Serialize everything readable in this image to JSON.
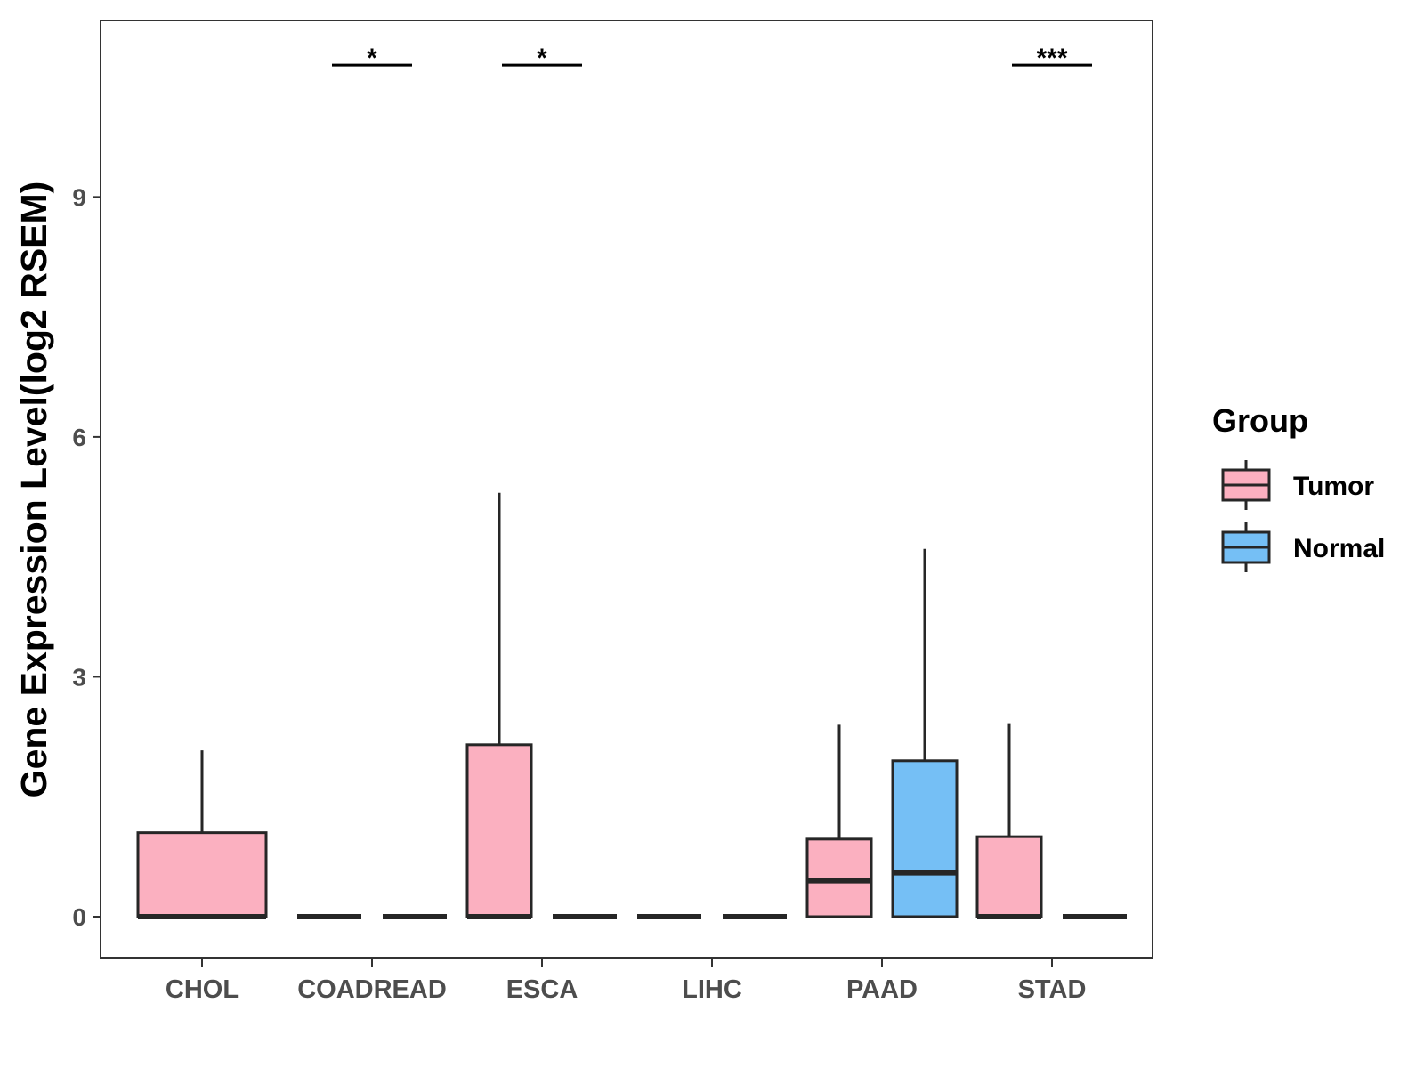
{
  "chart_data": {
    "type": "box",
    "title": "",
    "xlabel": "",
    "ylabel": "Gene Expression Level(log2 RSEM)",
    "ylim": [
      -0.55,
      11.2
    ],
    "yticks": [
      0,
      3,
      6,
      9
    ],
    "categories": [
      "CHOL",
      "COADREAD",
      "ESCA",
      "LIHC",
      "PAAD",
      "STAD"
    ],
    "legend": {
      "title": "Group",
      "position": "right",
      "entries": [
        {
          "name": "Tumor",
          "color": "#FBB0C0"
        },
        {
          "name": "Normal",
          "color": "#75BFF5"
        }
      ]
    },
    "series": [
      {
        "name": "Tumor",
        "color": "#FBB0C0",
        "boxes": [
          {
            "category": "CHOL",
            "q1": 0,
            "median": 0,
            "q3": 1.05,
            "whisker_low": 0,
            "whisker_high": 2.08
          },
          {
            "category": "COADREAD",
            "q1": 0,
            "median": 0,
            "q3": 0,
            "whisker_low": 0,
            "whisker_high": 0
          },
          {
            "category": "ESCA",
            "q1": 0,
            "median": 0,
            "q3": 2.15,
            "whisker_low": 0,
            "whisker_high": 5.3
          },
          {
            "category": "LIHC",
            "q1": 0,
            "median": 0,
            "q3": 0,
            "whisker_low": 0,
            "whisker_high": 0
          },
          {
            "category": "PAAD",
            "q1": 0,
            "median": 0.45,
            "q3": 0.97,
            "whisker_low": 0,
            "whisker_high": 2.4
          },
          {
            "category": "STAD",
            "q1": 0,
            "median": 0,
            "q3": 1.0,
            "whisker_low": 0,
            "whisker_high": 2.42
          }
        ]
      },
      {
        "name": "Normal",
        "color": "#75BFF5",
        "boxes": [
          {
            "category": "CHOL",
            "absent": true
          },
          {
            "category": "COADREAD",
            "q1": 0,
            "median": 0,
            "q3": 0,
            "whisker_low": 0,
            "whisker_high": 0
          },
          {
            "category": "ESCA",
            "q1": 0,
            "median": 0,
            "q3": 0,
            "whisker_low": 0,
            "whisker_high": 0
          },
          {
            "category": "LIHC",
            "q1": 0,
            "median": 0,
            "q3": 0,
            "whisker_low": 0,
            "whisker_high": 0
          },
          {
            "category": "PAAD",
            "q1": 0,
            "median": 0.55,
            "q3": 1.95,
            "whisker_low": 0,
            "whisker_high": 4.6
          },
          {
            "category": "STAD",
            "q1": 0,
            "median": 0,
            "q3": 0,
            "whisker_low": 0,
            "whisker_high": 0
          }
        ]
      }
    ],
    "annotations": [
      {
        "category": "COADREAD",
        "label": "*",
        "y": 10.65
      },
      {
        "category": "ESCA",
        "label": "*",
        "y": 10.65
      },
      {
        "category": "STAD",
        "label": "***",
        "y": 10.65
      }
    ]
  }
}
